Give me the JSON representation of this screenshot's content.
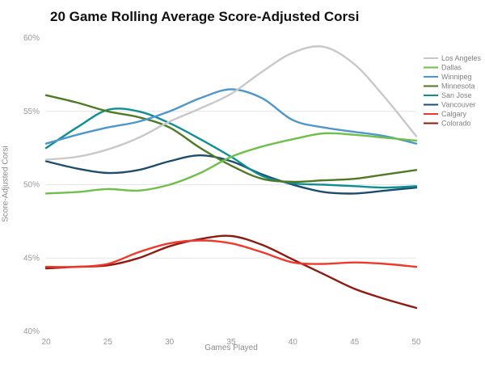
{
  "title": "20 Game Rolling Average Score-Adjusted Corsi",
  "chart_data": {
    "type": "line",
    "title": "20 Game Rolling Average Score-Adjusted Corsi",
    "xlabel": "Games Played",
    "ylabel": "Score-Adjusted Corsi",
    "xlim": [
      20,
      50
    ],
    "ylim": [
      40,
      60
    ],
    "x_ticks": [
      20,
      25,
      30,
      35,
      40,
      45,
      50
    ],
    "y_ticks": [
      40,
      45,
      50,
      55,
      60
    ],
    "y_tick_suffix": "%",
    "grid_y": [
      45,
      50,
      55
    ],
    "grid_color": "#e6e6e6",
    "legend_position": "right",
    "x": [
      20,
      22.5,
      25,
      27.5,
      30,
      32.5,
      35,
      37.5,
      40,
      42.5,
      45,
      47.5,
      50
    ],
    "series": [
      {
        "name": "Los Angeles",
        "color": "#c8c8c8",
        "values": [
          51.7,
          51.9,
          52.4,
          53.2,
          54.3,
          55.2,
          56.2,
          57.7,
          59.0,
          59.4,
          58.2,
          55.9,
          53.3
        ]
      },
      {
        "name": "Dallas",
        "color": "#6fbf4a",
        "values": [
          49.4,
          49.5,
          49.7,
          49.6,
          50.0,
          50.8,
          51.9,
          52.6,
          53.1,
          53.5,
          53.4,
          53.2,
          53.0
        ]
      },
      {
        "name": "Winnipeg",
        "color": "#4d97cd",
        "values": [
          52.8,
          53.4,
          53.9,
          54.3,
          55.0,
          55.9,
          56.5,
          55.9,
          54.4,
          53.9,
          53.6,
          53.3,
          52.8
        ]
      },
      {
        "name": "Minnesota",
        "color": "#4d7a22",
        "values": [
          56.1,
          55.6,
          55.0,
          54.6,
          53.9,
          52.5,
          51.3,
          50.4,
          50.2,
          50.3,
          50.4,
          50.7,
          51.0
        ]
      },
      {
        "name": "San Jose",
        "color": "#0e8f92",
        "values": [
          52.5,
          53.9,
          55.1,
          55.0,
          54.2,
          53.1,
          51.9,
          50.6,
          50.1,
          50.0,
          49.9,
          49.8,
          49.9
        ]
      },
      {
        "name": "Vancouver",
        "color": "#1d4d6e",
        "values": [
          51.6,
          51.1,
          50.8,
          51.0,
          51.6,
          52.0,
          51.6,
          50.7,
          50.0,
          49.5,
          49.4,
          49.6,
          49.8
        ]
      },
      {
        "name": "Calgary",
        "color": "#f0382b",
        "values": [
          44.4,
          44.4,
          44.6,
          45.4,
          46.0,
          46.2,
          46.0,
          45.4,
          44.7,
          44.6,
          44.7,
          44.6,
          44.4
        ]
      },
      {
        "name": "Colorado",
        "color": "#8f1a10",
        "values": [
          44.3,
          44.4,
          44.5,
          45.0,
          45.8,
          46.3,
          46.5,
          45.9,
          44.9,
          43.9,
          42.9,
          42.2,
          41.6
        ]
      }
    ]
  }
}
